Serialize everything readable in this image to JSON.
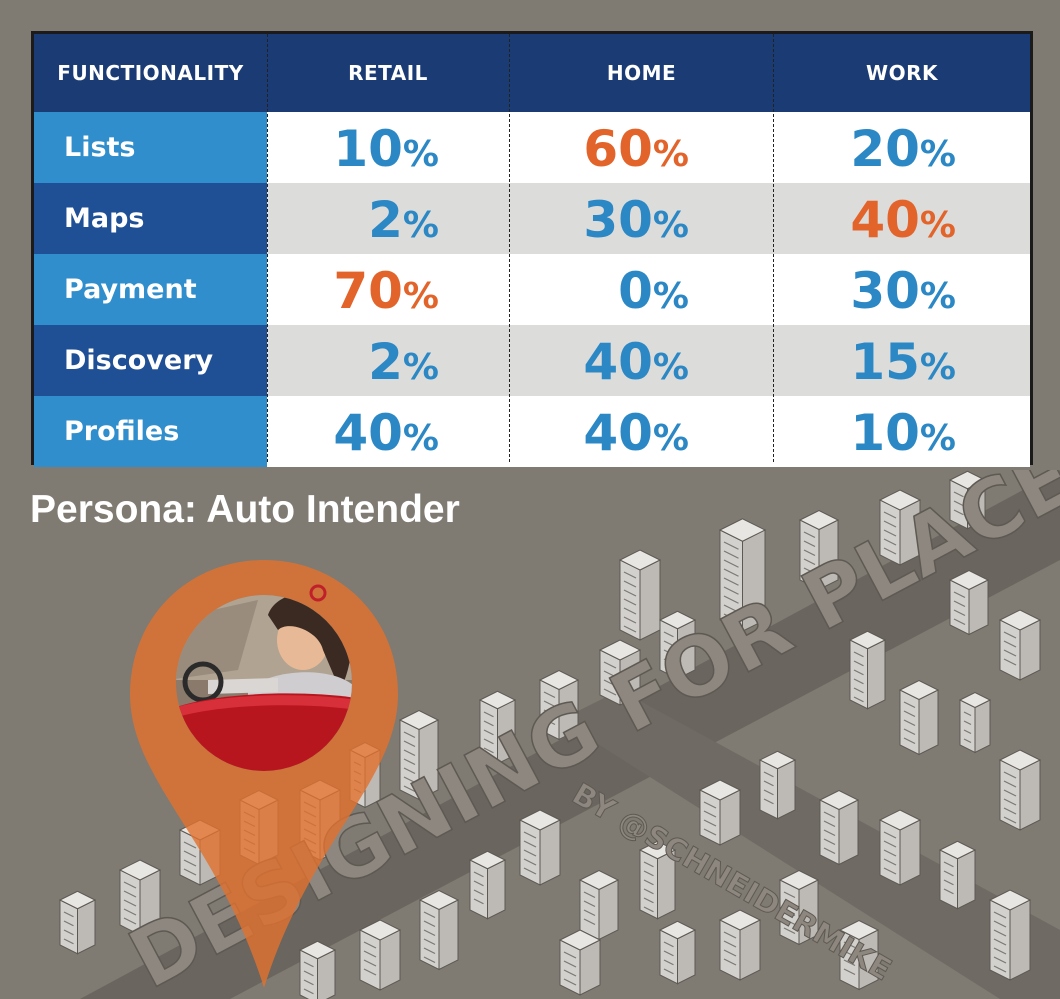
{
  "chart_data": {
    "type": "table",
    "columns": [
      "FUNCTIONALITY",
      "RETAIL",
      "HOME",
      "WORK"
    ],
    "rows": [
      {
        "label": "Lists",
        "values": [
          "10",
          "60",
          "20"
        ],
        "highlight": [
          false,
          true,
          false
        ]
      },
      {
        "label": "Maps",
        "values": [
          "2",
          "30",
          "40"
        ],
        "highlight": [
          false,
          false,
          true
        ]
      },
      {
        "label": "Payment",
        "values": [
          "70",
          "0",
          "30"
        ],
        "highlight": [
          true,
          false,
          false
        ]
      },
      {
        "label": "Discovery",
        "values": [
          "2",
          "40",
          "15"
        ],
        "highlight": [
          false,
          false,
          false
        ]
      },
      {
        "label": "Profiles",
        "values": [
          "40",
          "40",
          "10"
        ],
        "highlight": [
          false,
          false,
          false
        ]
      }
    ],
    "unit": "%"
  },
  "persona": {
    "title": "Persona: Auto Intender"
  },
  "road_text": {
    "title": "DESIGNING FOR PLACE",
    "byline": "BY @SCHNEIDERMIKE"
  },
  "colors": {
    "header_bg": "#1b3b74",
    "label_light": "#2f8ecb",
    "label_dark": "#1f4f94",
    "value_blue": "#2b88c5",
    "value_orange": "#e2642b",
    "background": "#7f7a72",
    "pin": "#e0722f"
  },
  "icons": {
    "pin": "map-pin-icon",
    "driver": "driver-illustration"
  }
}
